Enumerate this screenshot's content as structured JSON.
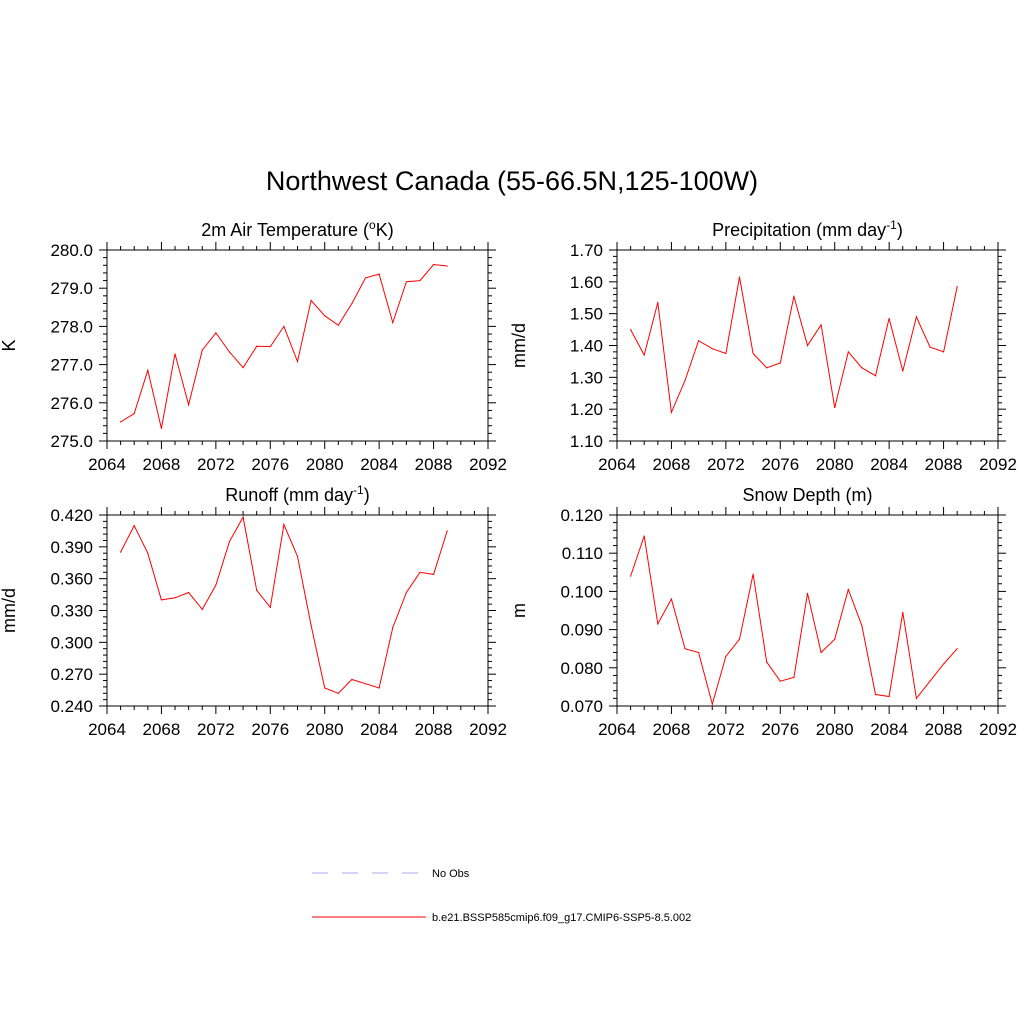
{
  "title": "Northwest Canada (55-66.5N,125-100W)",
  "legend": [
    {
      "label": "No Obs",
      "color": "#aaaaee",
      "dash": true
    },
    {
      "label": "b.e21.BSSP585cmip6.f09_g17.CMIP6-SSP5-8.5.002",
      "color": "#ff0000",
      "dash": false
    }
  ],
  "chart_data": [
    {
      "type": "line",
      "title_main": "2m Air Temperature (",
      "title_sup": "o",
      "title_tail": "K)",
      "ylabel": "K",
      "xlim": [
        2064,
        2092
      ],
      "ylim": [
        275.0,
        280.0
      ],
      "x_ticks": [
        "2064",
        "2068",
        "2072",
        "2076",
        "2080",
        "2084",
        "2088",
        "2092"
      ],
      "y_ticks": [
        "275.0",
        "276.0",
        "277.0",
        "278.0",
        "279.0",
        "280.0"
      ],
      "y_tick_values": [
        275.0,
        276.0,
        277.0,
        278.0,
        279.0,
        280.0
      ],
      "color": "#ff0000",
      "x": [
        2065,
        2066,
        2067,
        2068,
        2069,
        2070,
        2071,
        2072,
        2073,
        2074,
        2075,
        2076,
        2077,
        2078,
        2079,
        2080,
        2081,
        2082,
        2083,
        2084,
        2085,
        2086,
        2087,
        2088,
        2089
      ],
      "values": [
        275.5,
        275.72,
        276.85,
        275.33,
        277.28,
        275.95,
        277.38,
        277.83,
        277.33,
        276.92,
        277.48,
        277.47,
        278.0,
        277.08,
        278.68,
        278.28,
        278.03,
        278.6,
        279.27,
        279.37,
        278.1,
        279.17,
        279.2,
        279.62,
        279.58
      ]
    },
    {
      "type": "line",
      "title_main": "Precipitation (mm day",
      "title_sup": "-1",
      "title_tail": ")",
      "ylabel": "mm/d",
      "xlim": [
        2064,
        2092
      ],
      "ylim": [
        1.1,
        1.7
      ],
      "x_ticks": [
        "2064",
        "2068",
        "2072",
        "2076",
        "2080",
        "2084",
        "2088",
        "2092"
      ],
      "y_ticks": [
        "1.10",
        "1.20",
        "1.30",
        "1.40",
        "1.50",
        "1.60",
        "1.70"
      ],
      "y_tick_values": [
        1.1,
        1.2,
        1.3,
        1.4,
        1.5,
        1.6,
        1.7
      ],
      "color": "#ff0000",
      "x": [
        2065,
        2066,
        2067,
        2068,
        2069,
        2070,
        2071,
        2072,
        2073,
        2074,
        2075,
        2076,
        2077,
        2078,
        2079,
        2080,
        2081,
        2082,
        2083,
        2084,
        2085,
        2086,
        2087,
        2088,
        2089
      ],
      "values": [
        1.45,
        1.37,
        1.535,
        1.19,
        1.29,
        1.415,
        1.39,
        1.375,
        1.615,
        1.375,
        1.33,
        1.345,
        1.555,
        1.4,
        1.465,
        1.205,
        1.38,
        1.33,
        1.305,
        1.485,
        1.32,
        1.49,
        1.395,
        1.38,
        1.585
      ]
    },
    {
      "type": "line",
      "title_main": "Runoff (mm day",
      "title_sup": "-1",
      "title_tail": ")",
      "ylabel": "mm/d",
      "xlim": [
        2064,
        2092
      ],
      "ylim": [
        0.24,
        0.42
      ],
      "x_ticks": [
        "2064",
        "2068",
        "2072",
        "2076",
        "2080",
        "2084",
        "2088",
        "2092"
      ],
      "y_ticks": [
        "0.240",
        "0.270",
        "0.300",
        "0.330",
        "0.360",
        "0.390",
        "0.420"
      ],
      "y_tick_values": [
        0.24,
        0.27,
        0.3,
        0.33,
        0.36,
        0.39,
        0.42
      ],
      "color": "#ff0000",
      "x": [
        2065,
        2066,
        2067,
        2068,
        2069,
        2070,
        2071,
        2072,
        2073,
        2074,
        2075,
        2076,
        2077,
        2078,
        2079,
        2080,
        2081,
        2082,
        2083,
        2084,
        2085,
        2086,
        2087,
        2088,
        2089
      ],
      "values": [
        0.385,
        0.41,
        0.384,
        0.34,
        0.342,
        0.347,
        0.331,
        0.354,
        0.395,
        0.418,
        0.349,
        0.333,
        0.411,
        0.381,
        0.316,
        0.257,
        0.252,
        0.265,
        0.261,
        0.257,
        0.314,
        0.347,
        0.366,
        0.364,
        0.405
      ]
    },
    {
      "type": "line",
      "title_main": "Snow Depth (m)",
      "title_sup": "",
      "title_tail": "",
      "ylabel": "m",
      "xlim": [
        2064,
        2092
      ],
      "ylim": [
        0.07,
        0.12
      ],
      "x_ticks": [
        "2064",
        "2068",
        "2072",
        "2076",
        "2080",
        "2084",
        "2088",
        "2092"
      ],
      "y_ticks": [
        "0.070",
        "0.080",
        "0.090",
        "0.100",
        "0.110",
        "0.120"
      ],
      "y_tick_values": [
        0.07,
        0.08,
        0.09,
        0.1,
        0.11,
        0.12
      ],
      "color": "#ff0000",
      "x": [
        2065,
        2066,
        2067,
        2068,
        2069,
        2070,
        2071,
        2072,
        2073,
        2074,
        2075,
        2076,
        2077,
        2078,
        2079,
        2080,
        2081,
        2082,
        2083,
        2084,
        2085,
        2086,
        2087,
        2088,
        2089
      ],
      "values": [
        0.104,
        0.1145,
        0.0915,
        0.098,
        0.085,
        0.084,
        0.0705,
        0.083,
        0.0875,
        0.1045,
        0.0815,
        0.0765,
        0.0775,
        0.0995,
        0.084,
        0.0875,
        0.1005,
        0.091,
        0.073,
        0.0725,
        0.0945,
        0.072,
        0.0765,
        0.081,
        0.085
      ]
    }
  ]
}
